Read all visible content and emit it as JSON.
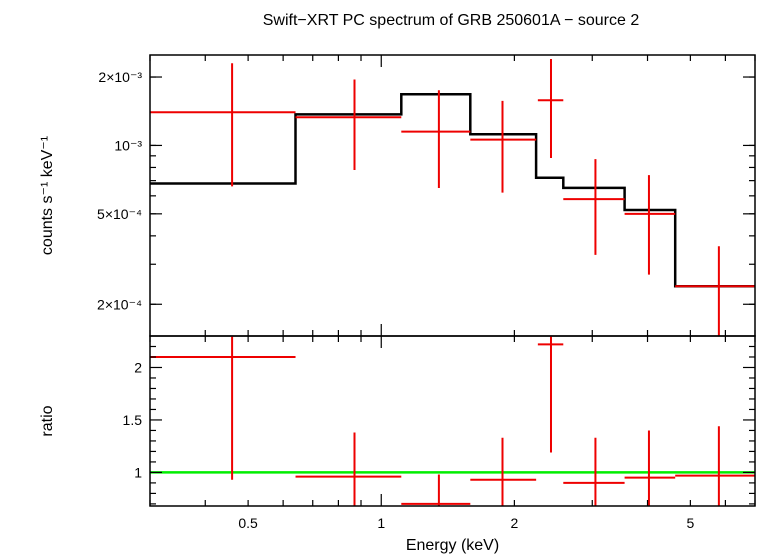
{
  "chart_data": [
    {
      "type": "line",
      "title": "Swift−XRT PC spectrum of GRB 250601A − source 2",
      "ylabel": "counts s⁻¹ keV⁻¹",
      "x_scale": "log",
      "y_scale": "log",
      "xlim": [
        0.3,
        7.0
      ],
      "ylim": [
        0.000145,
        0.0025
      ],
      "ytick_labels": [
        {
          "value": 0.0002,
          "label": "2×10⁻⁴"
        },
        {
          "value": 0.0005,
          "label": "5×10⁻⁴"
        },
        {
          "value": 0.001,
          "label": "10⁻³"
        },
        {
          "value": 0.002,
          "label": "2×10⁻³"
        }
      ],
      "series": [
        {
          "style": "crosses",
          "color": "#ee0000",
          "points": [
            {
              "x": 0.46,
              "xlo": 0.3,
              "xhi": 0.64,
              "y": 0.0014,
              "ylo": 0.00066,
              "yhi": 0.0023
            },
            {
              "x": 0.87,
              "xlo": 0.64,
              "xhi": 1.11,
              "y": 0.00133,
              "ylo": 0.00078,
              "yhi": 0.00195
            },
            {
              "x": 1.35,
              "xlo": 1.11,
              "xhi": 1.59,
              "y": 0.00115,
              "ylo": 0.00065,
              "yhi": 0.00175
            },
            {
              "x": 1.88,
              "xlo": 1.59,
              "xhi": 2.24,
              "y": 0.00106,
              "ylo": 0.00062,
              "yhi": 0.00157
            },
            {
              "x": 2.42,
              "xlo": 2.26,
              "xhi": 2.58,
              "y": 0.00158,
              "ylo": 0.00088,
              "yhi": 0.0024
            },
            {
              "x": 3.05,
              "xlo": 2.58,
              "xhi": 3.55,
              "y": 0.00058,
              "ylo": 0.00033,
              "yhi": 0.00087
            },
            {
              "x": 4.03,
              "xlo": 3.55,
              "xhi": 4.62,
              "y": 0.0005,
              "ylo": 0.00027,
              "yhi": 0.00074
            },
            {
              "x": 5.8,
              "xlo": 4.62,
              "xhi": 7.0,
              "y": 0.00024,
              "ylo": 0.000145,
              "yhi": 0.00036
            }
          ]
        },
        {
          "style": "step",
          "color": "#000000",
          "edges": [
            0.3,
            0.64,
            1.11,
            1.59,
            2.24,
            2.58,
            3.55,
            4.62,
            7.0
          ],
          "values": [
            0.00068,
            0.00137,
            0.00168,
            0.00112,
            0.00072,
            0.00065,
            0.00052,
            0.00024
          ]
        }
      ]
    },
    {
      "type": "line",
      "ylabel": "ratio",
      "xlabel": "Energy (keV)",
      "x_scale": "log",
      "xlim": [
        0.3,
        7.0
      ],
      "ylim": [
        0.68,
        2.3
      ],
      "yticks": [
        1,
        1.5,
        2
      ],
      "ytick_labels": [
        "1",
        "1.5",
        "2"
      ],
      "xticks": [
        0.5,
        1,
        2,
        5
      ],
      "xtick_labels": [
        "0.5",
        "1",
        "2",
        "5"
      ],
      "reference_line": {
        "y": 1,
        "color": "#00ee00"
      },
      "series": [
        {
          "style": "crosses",
          "color": "#ee0000",
          "points": [
            {
              "x": 0.46,
              "xlo": 0.3,
              "xhi": 0.64,
              "y": 2.1,
              "ylo": 0.93,
              "yhi": 2.3
            },
            {
              "x": 0.87,
              "xlo": 0.64,
              "xhi": 1.11,
              "y": 0.96,
              "ylo": 0.68,
              "yhi": 1.38
            },
            {
              "x": 1.35,
              "xlo": 1.11,
              "xhi": 1.59,
              "y": 0.7,
              "ylo": 0.68,
              "yhi": 0.98
            },
            {
              "x": 1.88,
              "xlo": 1.59,
              "xhi": 2.24,
              "y": 0.93,
              "ylo": 0.68,
              "yhi": 1.33
            },
            {
              "x": 2.42,
              "xlo": 2.26,
              "xhi": 2.58,
              "y": 2.22,
              "ylo": 1.19,
              "yhi": 2.3
            },
            {
              "x": 3.05,
              "xlo": 2.58,
              "xhi": 3.55,
              "y": 0.9,
              "ylo": 0.68,
              "yhi": 1.33
            },
            {
              "x": 4.03,
              "xlo": 3.55,
              "xhi": 4.62,
              "y": 0.95,
              "ylo": 0.68,
              "yhi": 1.4
            },
            {
              "x": 5.8,
              "xlo": 4.62,
              "xhi": 7.0,
              "y": 0.97,
              "ylo": 0.68,
              "yhi": 1.44
            }
          ]
        }
      ]
    }
  ]
}
